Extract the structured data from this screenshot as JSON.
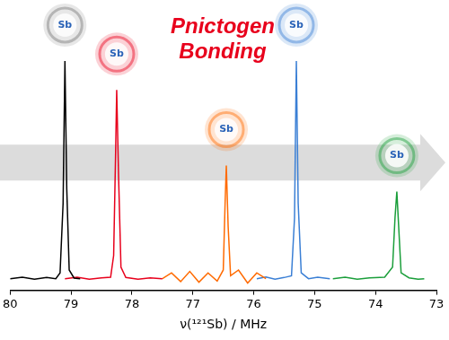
{
  "chart_data": {
    "type": "line",
    "title": "Pnictogen Bonding",
    "x_label": "ν(¹²¹Sb) / MHz",
    "xlim": [
      80,
      73
    ],
    "xticks": [
      80,
      79,
      78,
      77,
      76,
      75,
      74,
      73
    ],
    "ylim": [
      0,
      100
    ],
    "tick_labels": "x",
    "grid": false,
    "annotations": [
      "Sb",
      "Sb",
      "Sb",
      "Sb",
      "Sb"
    ],
    "series": [
      {
        "color": "#000000",
        "x": [
          80.0,
          79.8,
          79.6,
          79.4,
          79.25,
          79.18,
          79.13,
          79.1,
          79.07,
          79.03,
          78.95,
          78.85
        ],
        "values": [
          4,
          4.5,
          3.8,
          4.4,
          4,
          6,
          30,
          79,
          35,
          7,
          4.2,
          4
        ]
      },
      {
        "color": "#e8001c",
        "x": [
          79.1,
          78.9,
          78.7,
          78.5,
          78.35,
          78.3,
          78.27,
          78.25,
          78.22,
          78.18,
          78.1,
          77.9,
          77.7,
          77.5
        ],
        "values": [
          4,
          4.5,
          3.8,
          4.3,
          4.5,
          12,
          45,
          69,
          40,
          8,
          4.4,
          3.8,
          4.3,
          4
        ]
      },
      {
        "color": "#ff6a00",
        "x": [
          77.5,
          77.35,
          77.2,
          77.05,
          76.9,
          76.75,
          76.6,
          76.5,
          76.47,
          76.45,
          76.42,
          76.38,
          76.25,
          76.1,
          75.95,
          75.8
        ],
        "values": [
          4,
          6,
          3,
          6.5,
          2.8,
          6,
          3.2,
          7,
          30,
          43,
          22,
          5,
          7,
          2.5,
          6,
          4
        ]
      },
      {
        "color": "#3a7fd5",
        "x": [
          75.95,
          75.8,
          75.65,
          75.5,
          75.38,
          75.33,
          75.3,
          75.27,
          75.22,
          75.1,
          74.95,
          74.75
        ],
        "values": [
          4,
          4.6,
          3.8,
          4.4,
          5,
          25,
          79,
          30,
          6,
          4,
          4.5,
          4
        ]
      },
      {
        "color": "#1a9e3a",
        "x": [
          74.7,
          74.5,
          74.3,
          74.1,
          73.85,
          73.72,
          73.68,
          73.65,
          73.62,
          73.58,
          73.45,
          73.3,
          73.2
        ],
        "values": [
          4,
          4.5,
          3.8,
          4.3,
          4.5,
          8,
          25,
          34,
          22,
          6,
          4.3,
          3.8,
          4
        ]
      }
    ]
  }
}
